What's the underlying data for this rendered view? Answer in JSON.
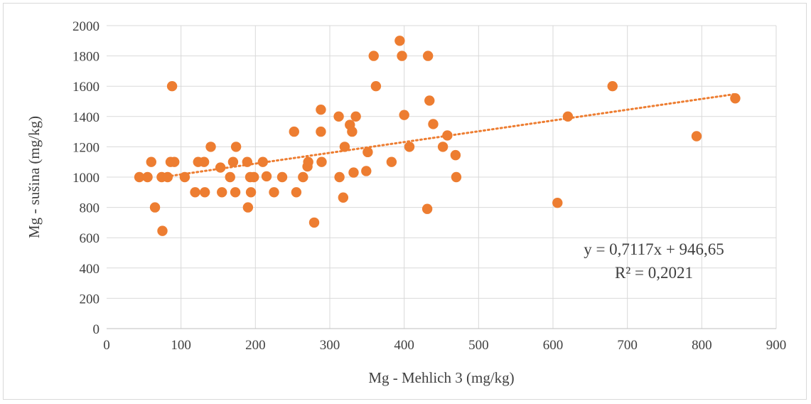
{
  "chart_data": {
    "type": "scatter",
    "xlabel": "Mg - Mehlich 3 (mg/kg)",
    "ylabel": "Mg - sušina (mg/kg)",
    "xlim": [
      0,
      900
    ],
    "ylim": [
      0,
      2000
    ],
    "x_ticks": [
      "0",
      "100",
      "200",
      "300",
      "400",
      "500",
      "600",
      "700",
      "800",
      "900"
    ],
    "y_ticks": [
      "0",
      "200",
      "400",
      "600",
      "800",
      "1000",
      "1200",
      "1400",
      "1600",
      "1800",
      "2000"
    ],
    "grid": true,
    "marker_color": "#ED7D31",
    "trendline": {
      "style": "dotted",
      "color": "#ED7D31",
      "slope": 0.7117,
      "intercept": 946.65,
      "x_range": [
        70,
        845
      ],
      "equation": "y = 0,7117x + 946,65",
      "r_squared": "R² = 0,2021"
    },
    "points": [
      [
        44,
        1000
      ],
      [
        55,
        1000
      ],
      [
        60,
        1100
      ],
      [
        65,
        800
      ],
      [
        74,
        1000
      ],
      [
        75,
        645
      ],
      [
        82,
        1000
      ],
      [
        86,
        1100
      ],
      [
        88,
        1600
      ],
      [
        91,
        1100
      ],
      [
        105,
        1000
      ],
      [
        119,
        900
      ],
      [
        123,
        1100
      ],
      [
        131,
        1100
      ],
      [
        132,
        900
      ],
      [
        140,
        1200
      ],
      [
        153,
        1063
      ],
      [
        155,
        900
      ],
      [
        166,
        1000
      ],
      [
        170,
        1100
      ],
      [
        173,
        900
      ],
      [
        174,
        1200
      ],
      [
        189,
        1100
      ],
      [
        190,
        800
      ],
      [
        193,
        1000
      ],
      [
        194,
        900
      ],
      [
        198,
        1000
      ],
      [
        210,
        1100
      ],
      [
        215,
        1005
      ],
      [
        225,
        900
      ],
      [
        236,
        1000
      ],
      [
        252,
        1300
      ],
      [
        255,
        900
      ],
      [
        264,
        1000
      ],
      [
        270,
        1070
      ],
      [
        271,
        1100
      ],
      [
        279,
        700
      ],
      [
        288,
        1445
      ],
      [
        288,
        1300
      ],
      [
        289,
        1100
      ],
      [
        312,
        1400
      ],
      [
        313,
        1000
      ],
      [
        318,
        865
      ],
      [
        320,
        1200
      ],
      [
        327,
        1345
      ],
      [
        330,
        1300
      ],
      [
        332,
        1030
      ],
      [
        335,
        1400
      ],
      [
        349,
        1040
      ],
      [
        351,
        1165
      ],
      [
        359,
        1800
      ],
      [
        362,
        1600
      ],
      [
        383,
        1100
      ],
      [
        394,
        1900
      ],
      [
        397,
        1800
      ],
      [
        400,
        1410
      ],
      [
        407,
        1200
      ],
      [
        431,
        790
      ],
      [
        432,
        1800
      ],
      [
        434,
        1505
      ],
      [
        439,
        1350
      ],
      [
        452,
        1200
      ],
      [
        458,
        1275
      ],
      [
        469,
        1145
      ],
      [
        470,
        1000
      ],
      [
        606,
        830
      ],
      [
        620,
        1400
      ],
      [
        680,
        1600
      ],
      [
        793,
        1270
      ],
      [
        845,
        1520
      ]
    ]
  }
}
